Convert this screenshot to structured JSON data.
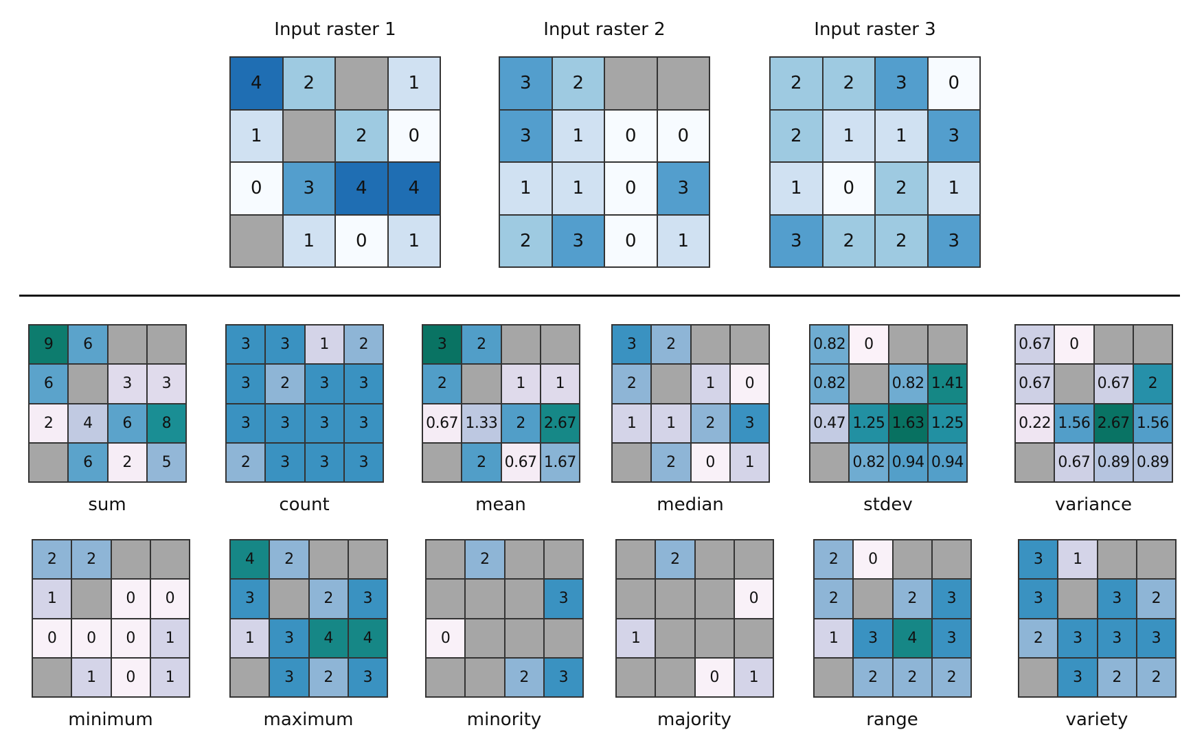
{
  "nodata_color": "#a6a6a6",
  "input_colors": {
    "0": "#f7fbff",
    "1": "#d0e1f2",
    "2": "#9ecae1",
    "3": "#539ecd",
    "4": "#1f6eb3"
  },
  "output_colormap": [
    "#fff7fb",
    "#ece2f0",
    "#d0d1e6",
    "#a6bddb",
    "#67a9cf",
    "#3690c0",
    "#1c9099",
    "#0e7d70",
    "#016450"
  ],
  "inputs": [
    {
      "title": "Input raster 1",
      "cells": [
        [
          "4",
          "2",
          null,
          "1"
        ],
        [
          "1",
          null,
          "2",
          "0"
        ],
        [
          "0",
          "3",
          "4",
          "4"
        ],
        [
          null,
          "1",
          "0",
          "1"
        ]
      ]
    },
    {
      "title": "Input raster 2",
      "cells": [
        [
          "3",
          "2",
          null,
          null
        ],
        [
          "3",
          "1",
          "0",
          "0"
        ],
        [
          "1",
          "1",
          "0",
          "3"
        ],
        [
          "2",
          "3",
          "0",
          "1"
        ]
      ]
    },
    {
      "title": "Input raster 3",
      "cells": [
        [
          "2",
          "2",
          "3",
          "0"
        ],
        [
          "2",
          "1",
          "1",
          "3"
        ],
        [
          "1",
          "0",
          "2",
          "1"
        ],
        [
          "3",
          "2",
          "2",
          "3"
        ]
      ]
    }
  ],
  "outputs": [
    {
      "label": "sum",
      "color_range": [
        1.5,
        10
      ],
      "cells": [
        [
          "9",
          "6",
          null,
          null
        ],
        [
          "6",
          null,
          "3",
          "3"
        ],
        [
          "2",
          "4",
          "6",
          "8"
        ],
        [
          null,
          "6",
          "2",
          "5"
        ]
      ]
    },
    {
      "label": "count",
      "color_range": [
        -0.2,
        5
      ],
      "cells": [
        [
          "3",
          "3",
          "1",
          "2"
        ],
        [
          "3",
          "2",
          "3",
          "3"
        ],
        [
          "3",
          "3",
          "3",
          "3"
        ],
        [
          "2",
          "3",
          "3",
          "3"
        ]
      ]
    },
    {
      "label": "mean",
      "color_range": [
        0.5,
        3.2
      ],
      "cells": [
        [
          "3",
          "2",
          null,
          null
        ],
        [
          "2",
          null,
          "1",
          "1"
        ],
        [
          "0.67",
          "1.33",
          "2",
          "2.67"
        ],
        [
          null,
          "2",
          "0.67",
          "1.67"
        ]
      ]
    },
    {
      "label": "median",
      "color_range": [
        -0.2,
        5
      ],
      "cells": [
        [
          "3",
          "2",
          null,
          null
        ],
        [
          "2",
          null,
          "1",
          "0"
        ],
        [
          "1",
          "1",
          "2",
          "3"
        ],
        [
          null,
          "2",
          "0",
          "1"
        ]
      ]
    },
    {
      "label": "stdev",
      "color_range": [
        -0.05,
        1.75
      ],
      "cells": [
        [
          "0.82",
          "0",
          null,
          null
        ],
        [
          "0.82",
          null,
          "0.82",
          "1.41"
        ],
        [
          "0.47",
          "1.25",
          "1.63",
          "1.25"
        ],
        [
          null,
          "0.82",
          "0.94",
          "0.94"
        ]
      ]
    },
    {
      "label": "variance",
      "color_range": [
        -0.1,
        2.9
      ],
      "cells": [
        [
          "0.67",
          "0",
          null,
          null
        ],
        [
          "0.67",
          null,
          "0.67",
          "2"
        ],
        [
          "0.22",
          "1.56",
          "2.67",
          "1.56"
        ],
        [
          null,
          "0.67",
          "0.89",
          "0.89"
        ]
      ]
    },
    {
      "label": "minimum",
      "color_range": [
        -0.2,
        5
      ],
      "cells": [
        [
          "2",
          "2",
          null,
          null
        ],
        [
          "1",
          null,
          "0",
          "0"
        ],
        [
          "0",
          "0",
          "0",
          "1"
        ],
        [
          null,
          "1",
          "0",
          "1"
        ]
      ]
    },
    {
      "label": "maximum",
      "color_range": [
        -0.2,
        5
      ],
      "cells": [
        [
          "4",
          "2",
          null,
          null
        ],
        [
          "3",
          null,
          "2",
          "3"
        ],
        [
          "1",
          "3",
          "4",
          "4"
        ],
        [
          null,
          "3",
          "2",
          "3"
        ]
      ]
    },
    {
      "label": "minority",
      "color_range": [
        -0.2,
        5
      ],
      "cells": [
        [
          null,
          "2",
          null,
          null
        ],
        [
          null,
          null,
          null,
          "3"
        ],
        [
          "0",
          null,
          null,
          null
        ],
        [
          null,
          null,
          "2",
          "3"
        ]
      ]
    },
    {
      "label": "majority",
      "color_range": [
        -0.2,
        5
      ],
      "cells": [
        [
          null,
          "2",
          null,
          null
        ],
        [
          null,
          null,
          null,
          "0"
        ],
        [
          "1",
          null,
          null,
          null
        ],
        [
          null,
          null,
          "0",
          "1"
        ]
      ]
    },
    {
      "label": "range",
      "color_range": [
        -0.2,
        5
      ],
      "cells": [
        [
          "2",
          "0",
          null,
          null
        ],
        [
          "2",
          null,
          "2",
          "3"
        ],
        [
          "1",
          "3",
          "4",
          "3"
        ],
        [
          null,
          "2",
          "2",
          "2"
        ]
      ]
    },
    {
      "label": "variety",
      "color_range": [
        -0.2,
        5
      ],
      "cells": [
        [
          "3",
          "1",
          null,
          null
        ],
        [
          "3",
          null,
          "3",
          "2"
        ],
        [
          "2",
          "3",
          "3",
          "3"
        ],
        [
          null,
          "3",
          "2",
          "2"
        ]
      ]
    }
  ]
}
